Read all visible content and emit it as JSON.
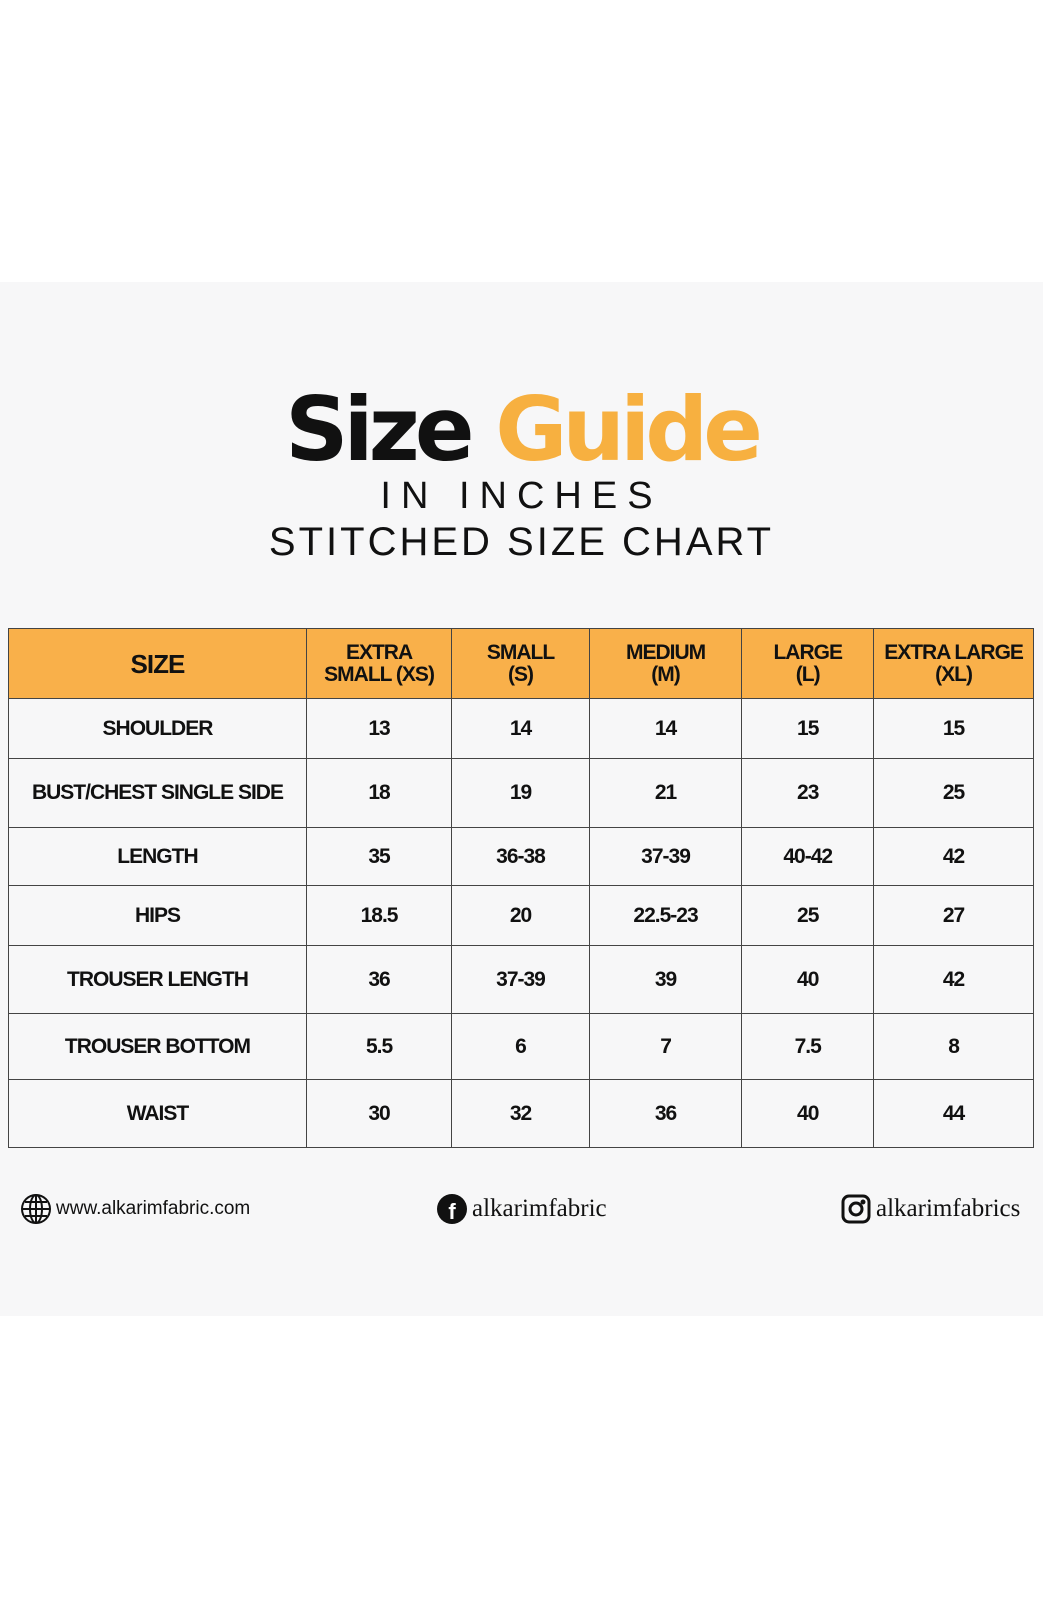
{
  "title": {
    "word1": "Size",
    "word2": "Guide",
    "subtitle": "IN INCHES",
    "subtitle2": "STITCHED SIZE CHART"
  },
  "colors": {
    "accent": "#f9b04a",
    "title_accent": "#f7b040",
    "text": "#111111"
  },
  "table": {
    "headers": [
      [
        "SIZE"
      ],
      [
        "EXTRA",
        "SMALL (XS)"
      ],
      [
        "SMALL",
        "(S)"
      ],
      [
        "MEDIUM",
        "(M)"
      ],
      [
        "LARGE",
        "(L)"
      ],
      [
        "EXTRA LARGE",
        "(XL)"
      ]
    ],
    "rows": [
      [
        "SHOULDER",
        "13",
        "14",
        "14",
        "15",
        "15"
      ],
      [
        "BUST/CHEST SINGLE SIDE",
        "18",
        "19",
        "21",
        "23",
        "25"
      ],
      [
        "LENGTH",
        "35",
        "36-38",
        "37-39",
        "40-42",
        "42"
      ],
      [
        "HIPS",
        "18.5",
        "20",
        "22.5-23",
        "25",
        "27"
      ],
      [
        "TROUSER LENGTH",
        "36",
        "37-39",
        "39",
        "40",
        "42"
      ],
      [
        "TROUSER BOTTOM",
        "5.5",
        "6",
        "7",
        "7.5",
        "8"
      ],
      [
        "WAIST",
        "30",
        "32",
        "36",
        "40",
        "44"
      ]
    ]
  },
  "footer": {
    "website": "www.alkarimfabric.com",
    "facebook": "alkarimfabric",
    "instagram": "alkarimfabrics",
    "icons": [
      "globe-icon",
      "facebook-icon",
      "instagram-icon"
    ]
  }
}
